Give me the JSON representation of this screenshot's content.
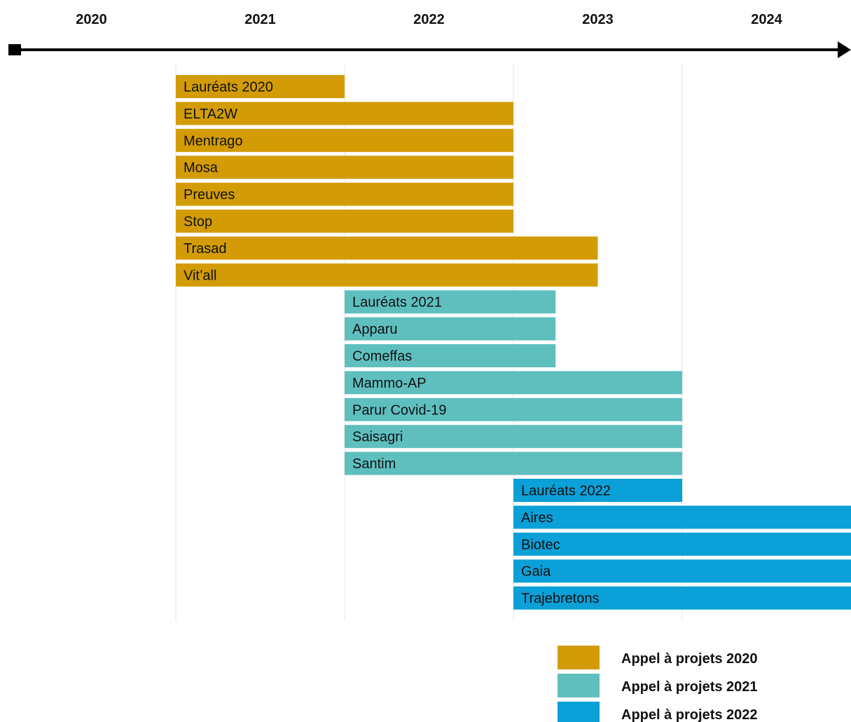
{
  "colors": {
    "call_2020": "#D39C06",
    "call_2021": "#5FBFBF",
    "call_2022": "#0CA0D8",
    "axis": "#000000",
    "grid": "#E6E6E6"
  },
  "chart_data": {
    "type": "gantt",
    "title": "",
    "x_axis": {
      "ticks": [
        "2020",
        "2021",
        "2022",
        "2023",
        "2024"
      ],
      "range": [
        2019.5,
        2024.5
      ]
    },
    "grid": true,
    "legend": {
      "placement": "bottom-right",
      "entries": [
        {
          "label": "Appel à projets 2020",
          "color_key": "call_2020"
        },
        {
          "label": "Appel à projets 2021",
          "color_key": "call_2021"
        },
        {
          "label": "Appel à projets 2022",
          "color_key": "call_2022"
        }
      ]
    },
    "series": [
      {
        "name": "Appel à projets 2020",
        "color_key": "call_2020",
        "bars": [
          {
            "label": "Lauréats 2020",
            "start": 2020.5,
            "end": 2021.5
          },
          {
            "label": "ELTA2W",
            "start": 2020.5,
            "end": 2022.5
          },
          {
            "label": "Mentrago",
            "start": 2020.5,
            "end": 2022.5
          },
          {
            "label": "Mosa",
            "start": 2020.5,
            "end": 2022.5
          },
          {
            "label": "Preuves",
            "start": 2020.5,
            "end": 2022.5
          },
          {
            "label": "Stop",
            "start": 2020.5,
            "end": 2022.5
          },
          {
            "label": "Trasad",
            "start": 2020.5,
            "end": 2023.0
          },
          {
            "label": "Vit’all",
            "start": 2020.5,
            "end": 2023.0
          }
        ]
      },
      {
        "name": "Appel à projets 2021",
        "color_key": "call_2021",
        "bars": [
          {
            "label": "Lauréats 2021",
            "start": 2021.5,
            "end": 2022.75
          },
          {
            "label": "Apparu",
            "start": 2021.5,
            "end": 2022.75
          },
          {
            "label": "Comeffas",
            "start": 2021.5,
            "end": 2022.75
          },
          {
            "label": "Mammo-AP",
            "start": 2021.5,
            "end": 2023.5
          },
          {
            "label": "Parur Covid-19",
            "start": 2021.5,
            "end": 2023.5
          },
          {
            "label": "Saisagri",
            "start": 2021.5,
            "end": 2023.5
          },
          {
            "label": "Santim",
            "start": 2021.5,
            "end": 2023.5
          }
        ]
      },
      {
        "name": "Appel à projets 2022",
        "color_key": "call_2022",
        "bars": [
          {
            "label": "Lauréats  2022",
            "start": 2022.5,
            "end": 2023.5
          },
          {
            "label": "Aires",
            "start": 2022.5,
            "end": 2024.5
          },
          {
            "label": "Biotec",
            "start": 2022.5,
            "end": 2024.5
          },
          {
            "label": "Gaia",
            "start": 2022.5,
            "end": 2024.5
          },
          {
            "label": "Trajebretons",
            "start": 2022.5,
            "end": 2024.5
          }
        ]
      }
    ]
  }
}
